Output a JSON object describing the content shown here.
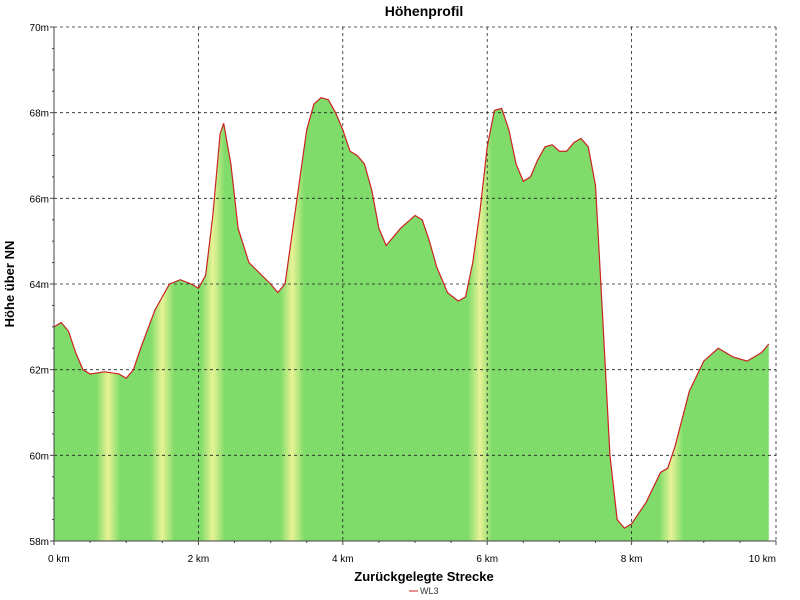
{
  "chart_data": {
    "type": "area",
    "title": "Höhenprofil",
    "xlabel": "Zurückgelegte Strecke",
    "ylabel": "Höhe über NN",
    "xlim": [
      0,
      10
    ],
    "ylim": [
      58,
      70
    ],
    "x_ticks": [
      0,
      2,
      4,
      6,
      8,
      10
    ],
    "x_tick_labels": [
      "0 km",
      "2 km",
      "4 km",
      "6 km",
      "8 km",
      "10 km"
    ],
    "y_ticks": [
      58,
      60,
      62,
      64,
      66,
      68,
      70
    ],
    "y_tick_labels": [
      "58m",
      "60m",
      "62m",
      "64m",
      "66m",
      "68m",
      "70m"
    ],
    "grid": true,
    "legend_position": "bottom-center",
    "series": [
      {
        "name": "WL3",
        "line_color": "#cc2222",
        "fill_color": "#7fdc6a",
        "x": [
          0.0,
          0.1,
          0.2,
          0.3,
          0.4,
          0.5,
          0.7,
          0.9,
          1.0,
          1.1,
          1.2,
          1.4,
          1.6,
          1.75,
          1.9,
          2.0,
          2.1,
          2.2,
          2.3,
          2.35,
          2.45,
          2.55,
          2.7,
          3.0,
          3.1,
          3.2,
          3.35,
          3.5,
          3.6,
          3.7,
          3.8,
          3.9,
          4.0,
          4.1,
          4.2,
          4.3,
          4.4,
          4.5,
          4.6,
          4.8,
          5.0,
          5.1,
          5.2,
          5.3,
          5.45,
          5.6,
          5.7,
          5.8,
          5.9,
          6.0,
          6.1,
          6.2,
          6.3,
          6.4,
          6.5,
          6.6,
          6.7,
          6.8,
          6.9,
          7.0,
          7.1,
          7.2,
          7.3,
          7.4,
          7.5,
          7.6,
          7.7,
          7.8,
          7.9,
          8.0,
          8.2,
          8.4,
          8.5,
          8.6,
          8.8,
          9.0,
          9.2,
          9.4,
          9.6,
          9.8,
          9.9
        ],
        "y": [
          63.0,
          63.1,
          62.9,
          62.4,
          62.0,
          61.9,
          61.95,
          61.9,
          61.8,
          62.0,
          62.5,
          63.4,
          64.0,
          64.1,
          64.0,
          63.9,
          64.2,
          65.6,
          67.5,
          67.75,
          66.8,
          65.3,
          64.5,
          64.0,
          63.8,
          64.0,
          65.8,
          67.6,
          68.2,
          68.35,
          68.3,
          68.0,
          67.6,
          67.1,
          67.0,
          66.8,
          66.2,
          65.3,
          64.9,
          65.3,
          65.6,
          65.5,
          65.0,
          64.4,
          63.8,
          63.6,
          63.7,
          64.5,
          65.7,
          67.2,
          68.05,
          68.1,
          67.6,
          66.8,
          66.4,
          66.5,
          66.9,
          67.2,
          67.25,
          67.1,
          67.1,
          67.3,
          67.4,
          67.2,
          66.3,
          63.2,
          60.0,
          58.5,
          58.3,
          58.4,
          58.9,
          59.6,
          59.7,
          60.2,
          61.5,
          62.2,
          62.5,
          62.3,
          62.2,
          62.4,
          62.6
        ]
      }
    ],
    "highlight_bands": [
      0.75,
      1.5,
      2.2,
      3.3,
      5.9,
      8.55
    ]
  }
}
